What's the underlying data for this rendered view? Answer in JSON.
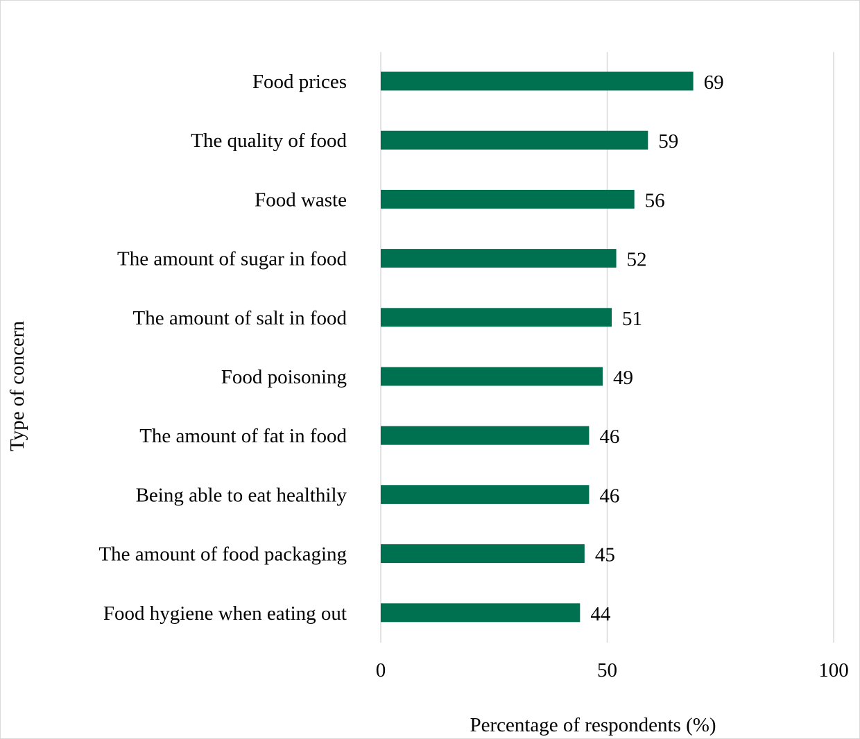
{
  "chart_data": {
    "type": "bar",
    "orientation": "horizontal",
    "categories": [
      "Food prices",
      "The quality of food",
      "Food waste",
      "The amount of sugar in food",
      "The amount of salt in food",
      "Food poisoning",
      "The amount of fat in food",
      "Being able to eat healthily",
      "The amount of food packaging",
      "Food hygiene when eating out"
    ],
    "values": [
      69,
      59,
      56,
      52,
      51,
      49,
      46,
      46,
      45,
      44
    ],
    "xlabel": "Percentage of respondents (%)",
    "ylabel": "Type of concern",
    "xlim": [
      0,
      100
    ],
    "xticks": [
      "0",
      "50",
      "100"
    ],
    "grid": true,
    "data_labels": true,
    "bar_color": "#007150",
    "grid_color": "#d9d9d9"
  }
}
